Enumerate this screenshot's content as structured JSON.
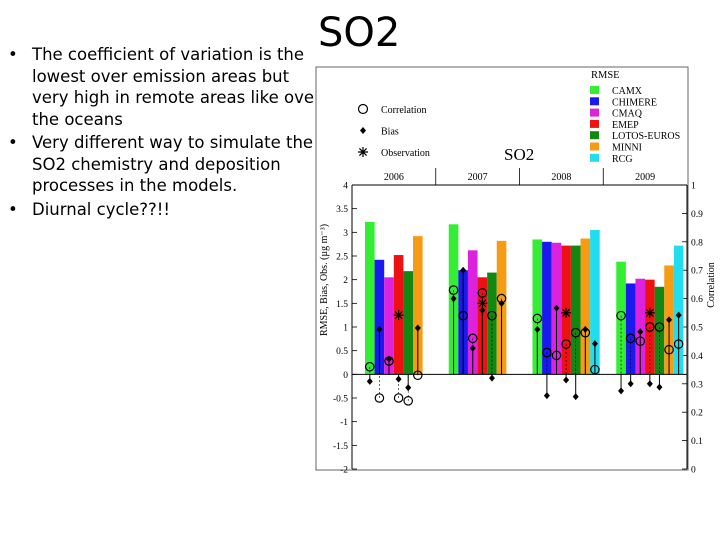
{
  "slide": {
    "title": "SO2",
    "bullets": [
      "The coefficient of variation is the lowest over emission areas but very high in remote areas like over the oceans",
      " Very different way to simulate the SO2 chemistry and deposition processes in the models.",
      "Diurnal cycle??!!"
    ],
    "bullet_glyph": "•"
  },
  "chart_data": {
    "type": "bar",
    "title": "SO2",
    "categories": [
      "2006",
      "2007",
      "2008",
      "2009"
    ],
    "ylabel_left": "RMSE, Bias, Obs. (µg m⁻³)",
    "ylabel_right": "Correlation",
    "ylim": [
      -2,
      4
    ],
    "ylim_right": [
      0,
      1
    ],
    "left_ticks": [
      "-2",
      "-1.5",
      "-1",
      "-0.5",
      "0",
      "0.5",
      "1",
      "1.5",
      "2",
      "2.5",
      "3",
      "3.5",
      "4"
    ],
    "right_ticks": [
      "0",
      "0.1",
      "0.2",
      "0.3",
      "0.4",
      "0.5",
      "0.6",
      "0.7",
      "0.8",
      "0.9",
      "1"
    ],
    "rmse_legend_title": "RMSE",
    "series": [
      {
        "name": "CAMX",
        "color": "#33ee33",
        "rmse": [
          3.22,
          3.17,
          2.85,
          2.38
        ],
        "bias": [
          -0.15,
          1.6,
          0.95,
          -0.35
        ],
        "correlation": [
          0.36,
          0.63,
          0.53,
          0.54
        ]
      },
      {
        "name": "CHIMERE",
        "color": "#1a1aee",
        "rmse": [
          2.42,
          2.2,
          2.8,
          1.92
        ],
        "bias": [
          0.95,
          2.2,
          -0.45,
          -0.2
        ],
        "correlation": [
          0.25,
          0.54,
          0.41,
          0.46
        ]
      },
      {
        "name": "CMAQ",
        "color": "#dd22dd",
        "rmse": [
          2.05,
          2.62,
          2.78,
          2.02
        ],
        "bias": [
          0.32,
          0.55,
          1.4,
          0.9
        ],
        "correlation": [
          0.38,
          0.46,
          0.4,
          0.45
        ]
      },
      {
        "name": "EMEP",
        "color": "#ee1111",
        "rmse": [
          2.52,
          2.05,
          2.72,
          2.0
        ],
        "bias": [
          -0.1,
          1.35,
          -0.12,
          -0.2
        ],
        "correlation": [
          0.25,
          0.62,
          0.44,
          0.5
        ]
      },
      {
        "name": "LOTOS-EUROS",
        "color": "#118811",
        "rmse": [
          2.18,
          2.15,
          2.72,
          1.85
        ],
        "bias": [
          -0.28,
          -0.08,
          -0.47,
          -0.27
        ],
        "correlation": [
          0.24,
          0.54,
          0.48,
          0.5
        ]
      },
      {
        "name": "MINNI",
        "color": "#f59b14",
        "rmse": [
          2.92,
          2.82,
          2.87,
          2.3
        ],
        "bias": [
          0.98,
          1.5,
          0.95,
          1.15
        ],
        "correlation": [
          0.33,
          0.6,
          0.48,
          0.42
        ]
      },
      {
        "name": "RCG",
        "color": "#22ddee",
        "rmse": [
          0,
          0,
          3.05,
          2.72
        ],
        "bias": [
          0,
          0,
          0.65,
          1.25
        ],
        "correlation": [
          0,
          0,
          0.35,
          0.44
        ]
      }
    ],
    "observation": [
      1.25,
      1.5,
      1.3,
      1.3
    ],
    "marker_legend": [
      {
        "label": "Correlation",
        "symbol": "circle"
      },
      {
        "label": "Bias",
        "symbol": "dot"
      },
      {
        "label": "Observation",
        "symbol": "asterisk"
      }
    ]
  }
}
